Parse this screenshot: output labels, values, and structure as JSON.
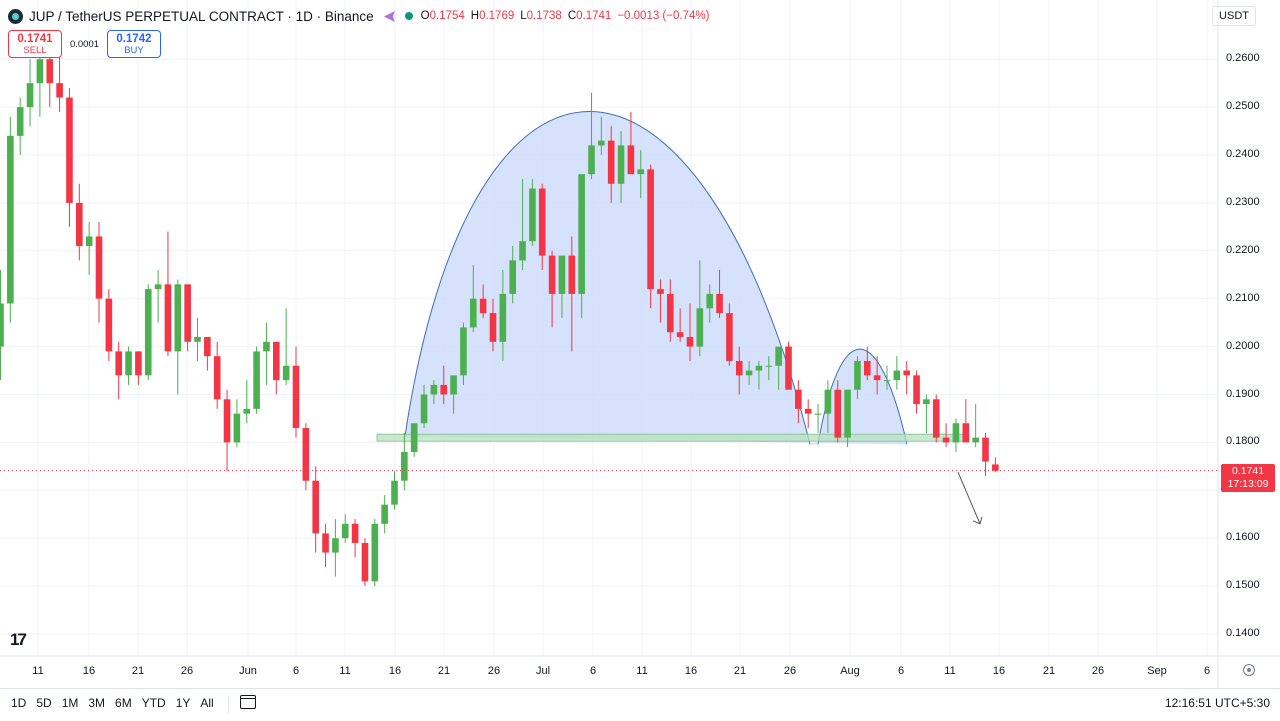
{
  "header": {
    "title": "JUP / TetherUS PERPETUAL CONTRACT · 1D · Binance",
    "ohlc": [
      {
        "k": "O",
        "v": "0.1754"
      },
      {
        "k": "H",
        "v": "0.1769"
      },
      {
        "k": "L",
        "v": "0.1738"
      },
      {
        "k": "C",
        "v": "0.1741"
      }
    ],
    "change": "−0.0013 (−0.74%)"
  },
  "trade": {
    "sell_price": "0.1741",
    "sell_label": "SELL",
    "spread": "0.0001",
    "buy_price": "0.1742",
    "buy_label": "BUY"
  },
  "currency": "USDT",
  "last_price_tag": {
    "price": "0.1741",
    "countdown": "17:13:09"
  },
  "logo_text": "17",
  "bottom_bar": {
    "ranges": [
      "1D",
      "5D",
      "1M",
      "3M",
      "6M",
      "YTD",
      "1Y",
      "All"
    ],
    "clock": "12:16:51 UTC+5:30"
  },
  "colors": {
    "up": "#089981",
    "up_body": "#4caf50",
    "down": "#f23645",
    "pattern_fill": "#cfdcfa",
    "pattern_stroke": "#3d6fb6",
    "neckline": "#b8e0c0"
  },
  "chart_data": {
    "type": "candlestick",
    "ylim": [
      0.135,
      0.2705
    ],
    "y_ticks": [
      "0.2600",
      "0.2500",
      "0.2400",
      "0.2300",
      "0.2200",
      "0.2100",
      "0.2000",
      "0.1900",
      "0.1800",
      "0.1700",
      "0.1600",
      "0.1500",
      "0.1400"
    ],
    "x_ticks": [
      "11",
      "16",
      "21",
      "26",
      "Jun",
      "6",
      "11",
      "16",
      "21",
      "26",
      "Jul",
      "6",
      "11",
      "16",
      "21",
      "26",
      "Aug",
      "6",
      "11",
      "16",
      "21",
      "26",
      "Sep",
      "6"
    ],
    "candles": [
      [
        0.2,
        0.216,
        0.193,
        0.209
      ],
      [
        0.209,
        0.248,
        0.205,
        0.244
      ],
      [
        0.244,
        0.252,
        0.24,
        0.25
      ],
      [
        0.25,
        0.26,
        0.246,
        0.255
      ],
      [
        0.255,
        0.265,
        0.248,
        0.26
      ],
      [
        0.26,
        0.266,
        0.25,
        0.255
      ],
      [
        0.255,
        0.262,
        0.249,
        0.252
      ],
      [
        0.252,
        0.254,
        0.225,
        0.23
      ],
      [
        0.23,
        0.234,
        0.218,
        0.221
      ],
      [
        0.221,
        0.226,
        0.215,
        0.223
      ],
      [
        0.223,
        0.226,
        0.205,
        0.21
      ],
      [
        0.21,
        0.212,
        0.197,
        0.199
      ],
      [
        0.199,
        0.201,
        0.189,
        0.194
      ],
      [
        0.194,
        0.2,
        0.192,
        0.199
      ],
      [
        0.199,
        0.199,
        0.192,
        0.194
      ],
      [
        0.194,
        0.213,
        0.193,
        0.212
      ],
      [
        0.212,
        0.216,
        0.205,
        0.213
      ],
      [
        0.213,
        0.224,
        0.198,
        0.199
      ],
      [
        0.199,
        0.214,
        0.19,
        0.213
      ],
      [
        0.213,
        0.213,
        0.199,
        0.201
      ],
      [
        0.201,
        0.206,
        0.197,
        0.202
      ],
      [
        0.202,
        0.202,
        0.195,
        0.198
      ],
      [
        0.198,
        0.201,
        0.187,
        0.189
      ],
      [
        0.189,
        0.191,
        0.174,
        0.18
      ],
      [
        0.18,
        0.189,
        0.179,
        0.186
      ],
      [
        0.186,
        0.193,
        0.184,
        0.187
      ],
      [
        0.187,
        0.2,
        0.186,
        0.199
      ],
      [
        0.199,
        0.205,
        0.192,
        0.201
      ],
      [
        0.201,
        0.201,
        0.19,
        0.193
      ],
      [
        0.193,
        0.208,
        0.192,
        0.196
      ],
      [
        0.196,
        0.2,
        0.181,
        0.183
      ],
      [
        0.183,
        0.184,
        0.17,
        0.172
      ],
      [
        0.172,
        0.175,
        0.157,
        0.161
      ],
      [
        0.161,
        0.163,
        0.154,
        0.157
      ],
      [
        0.157,
        0.164,
        0.152,
        0.16
      ],
      [
        0.16,
        0.165,
        0.159,
        0.163
      ],
      [
        0.163,
        0.164,
        0.156,
        0.159
      ],
      [
        0.159,
        0.16,
        0.15,
        0.151
      ],
      [
        0.151,
        0.164,
        0.15,
        0.163
      ],
      [
        0.163,
        0.169,
        0.161,
        0.167
      ],
      [
        0.167,
        0.174,
        0.166,
        0.172
      ],
      [
        0.172,
        0.182,
        0.17,
        0.178
      ],
      [
        0.178,
        0.184,
        0.177,
        0.184
      ],
      [
        0.184,
        0.192,
        0.183,
        0.19
      ],
      [
        0.19,
        0.193,
        0.188,
        0.192
      ],
      [
        0.192,
        0.196,
        0.188,
        0.19
      ],
      [
        0.19,
        0.193,
        0.186,
        0.194
      ],
      [
        0.194,
        0.205,
        0.192,
        0.204
      ],
      [
        0.204,
        0.217,
        0.203,
        0.21
      ],
      [
        0.21,
        0.213,
        0.206,
        0.207
      ],
      [
        0.207,
        0.21,
        0.199,
        0.201
      ],
      [
        0.201,
        0.216,
        0.197,
        0.211
      ],
      [
        0.211,
        0.221,
        0.209,
        0.218
      ],
      [
        0.218,
        0.235,
        0.216,
        0.222
      ],
      [
        0.222,
        0.235,
        0.221,
        0.233
      ],
      [
        0.233,
        0.234,
        0.216,
        0.219
      ],
      [
        0.219,
        0.22,
        0.204,
        0.211
      ],
      [
        0.211,
        0.218,
        0.206,
        0.219
      ],
      [
        0.219,
        0.223,
        0.199,
        0.211
      ],
      [
        0.211,
        0.235,
        0.206,
        0.236
      ],
      [
        0.236,
        0.253,
        0.235,
        0.242
      ],
      [
        0.242,
        0.248,
        0.24,
        0.243
      ],
      [
        0.243,
        0.246,
        0.23,
        0.234
      ],
      [
        0.234,
        0.245,
        0.23,
        0.242
      ],
      [
        0.242,
        0.249,
        0.236,
        0.236
      ],
      [
        0.236,
        0.241,
        0.231,
        0.237
      ],
      [
        0.237,
        0.238,
        0.208,
        0.212
      ],
      [
        0.212,
        0.214,
        0.205,
        0.211
      ],
      [
        0.211,
        0.214,
        0.201,
        0.203
      ],
      [
        0.203,
        0.208,
        0.201,
        0.202
      ],
      [
        0.202,
        0.209,
        0.197,
        0.2
      ],
      [
        0.2,
        0.218,
        0.198,
        0.208
      ],
      [
        0.208,
        0.213,
        0.205,
        0.211
      ],
      [
        0.211,
        0.216,
        0.206,
        0.207
      ],
      [
        0.207,
        0.209,
        0.196,
        0.197
      ],
      [
        0.197,
        0.2,
        0.19,
        0.194
      ],
      [
        0.194,
        0.197,
        0.192,
        0.195
      ],
      [
        0.195,
        0.197,
        0.191,
        0.196
      ],
      [
        0.196,
        0.198,
        0.193,
        0.196
      ],
      [
        0.196,
        0.2,
        0.191,
        0.2
      ],
      [
        0.2,
        0.201,
        0.192,
        0.191
      ],
      [
        0.191,
        0.193,
        0.184,
        0.187
      ],
      [
        0.187,
        0.189,
        0.183,
        0.186
      ],
      [
        0.186,
        0.188,
        0.182,
        0.186
      ],
      [
        0.186,
        0.193,
        0.182,
        0.191
      ],
      [
        0.191,
        0.193,
        0.18,
        0.181
      ],
      [
        0.181,
        0.191,
        0.179,
        0.191
      ],
      [
        0.191,
        0.198,
        0.189,
        0.197
      ],
      [
        0.197,
        0.2,
        0.193,
        0.194
      ],
      [
        0.194,
        0.198,
        0.19,
        0.193
      ],
      [
        0.193,
        0.196,
        0.191,
        0.193
      ],
      [
        0.193,
        0.198,
        0.191,
        0.195
      ],
      [
        0.195,
        0.197,
        0.19,
        0.194
      ],
      [
        0.194,
        0.195,
        0.186,
        0.188
      ],
      [
        0.188,
        0.19,
        0.182,
        0.189
      ],
      [
        0.189,
        0.19,
        0.18,
        0.181
      ],
      [
        0.181,
        0.184,
        0.179,
        0.18
      ],
      [
        0.18,
        0.185,
        0.178,
        0.184
      ],
      [
        0.184,
        0.189,
        0.18,
        0.18
      ],
      [
        0.18,
        0.188,
        0.179,
        0.181
      ],
      [
        0.181,
        0.182,
        0.173,
        0.176
      ],
      [
        0.1754,
        0.1769,
        0.1738,
        0.1741
      ]
    ],
    "overlays": {
      "neckline": [
        0.1813,
        0.1798
      ],
      "large_dome_peak": 0.249,
      "small_dome_peak": 0.2015,
      "arrow_target": 0.163
    }
  }
}
